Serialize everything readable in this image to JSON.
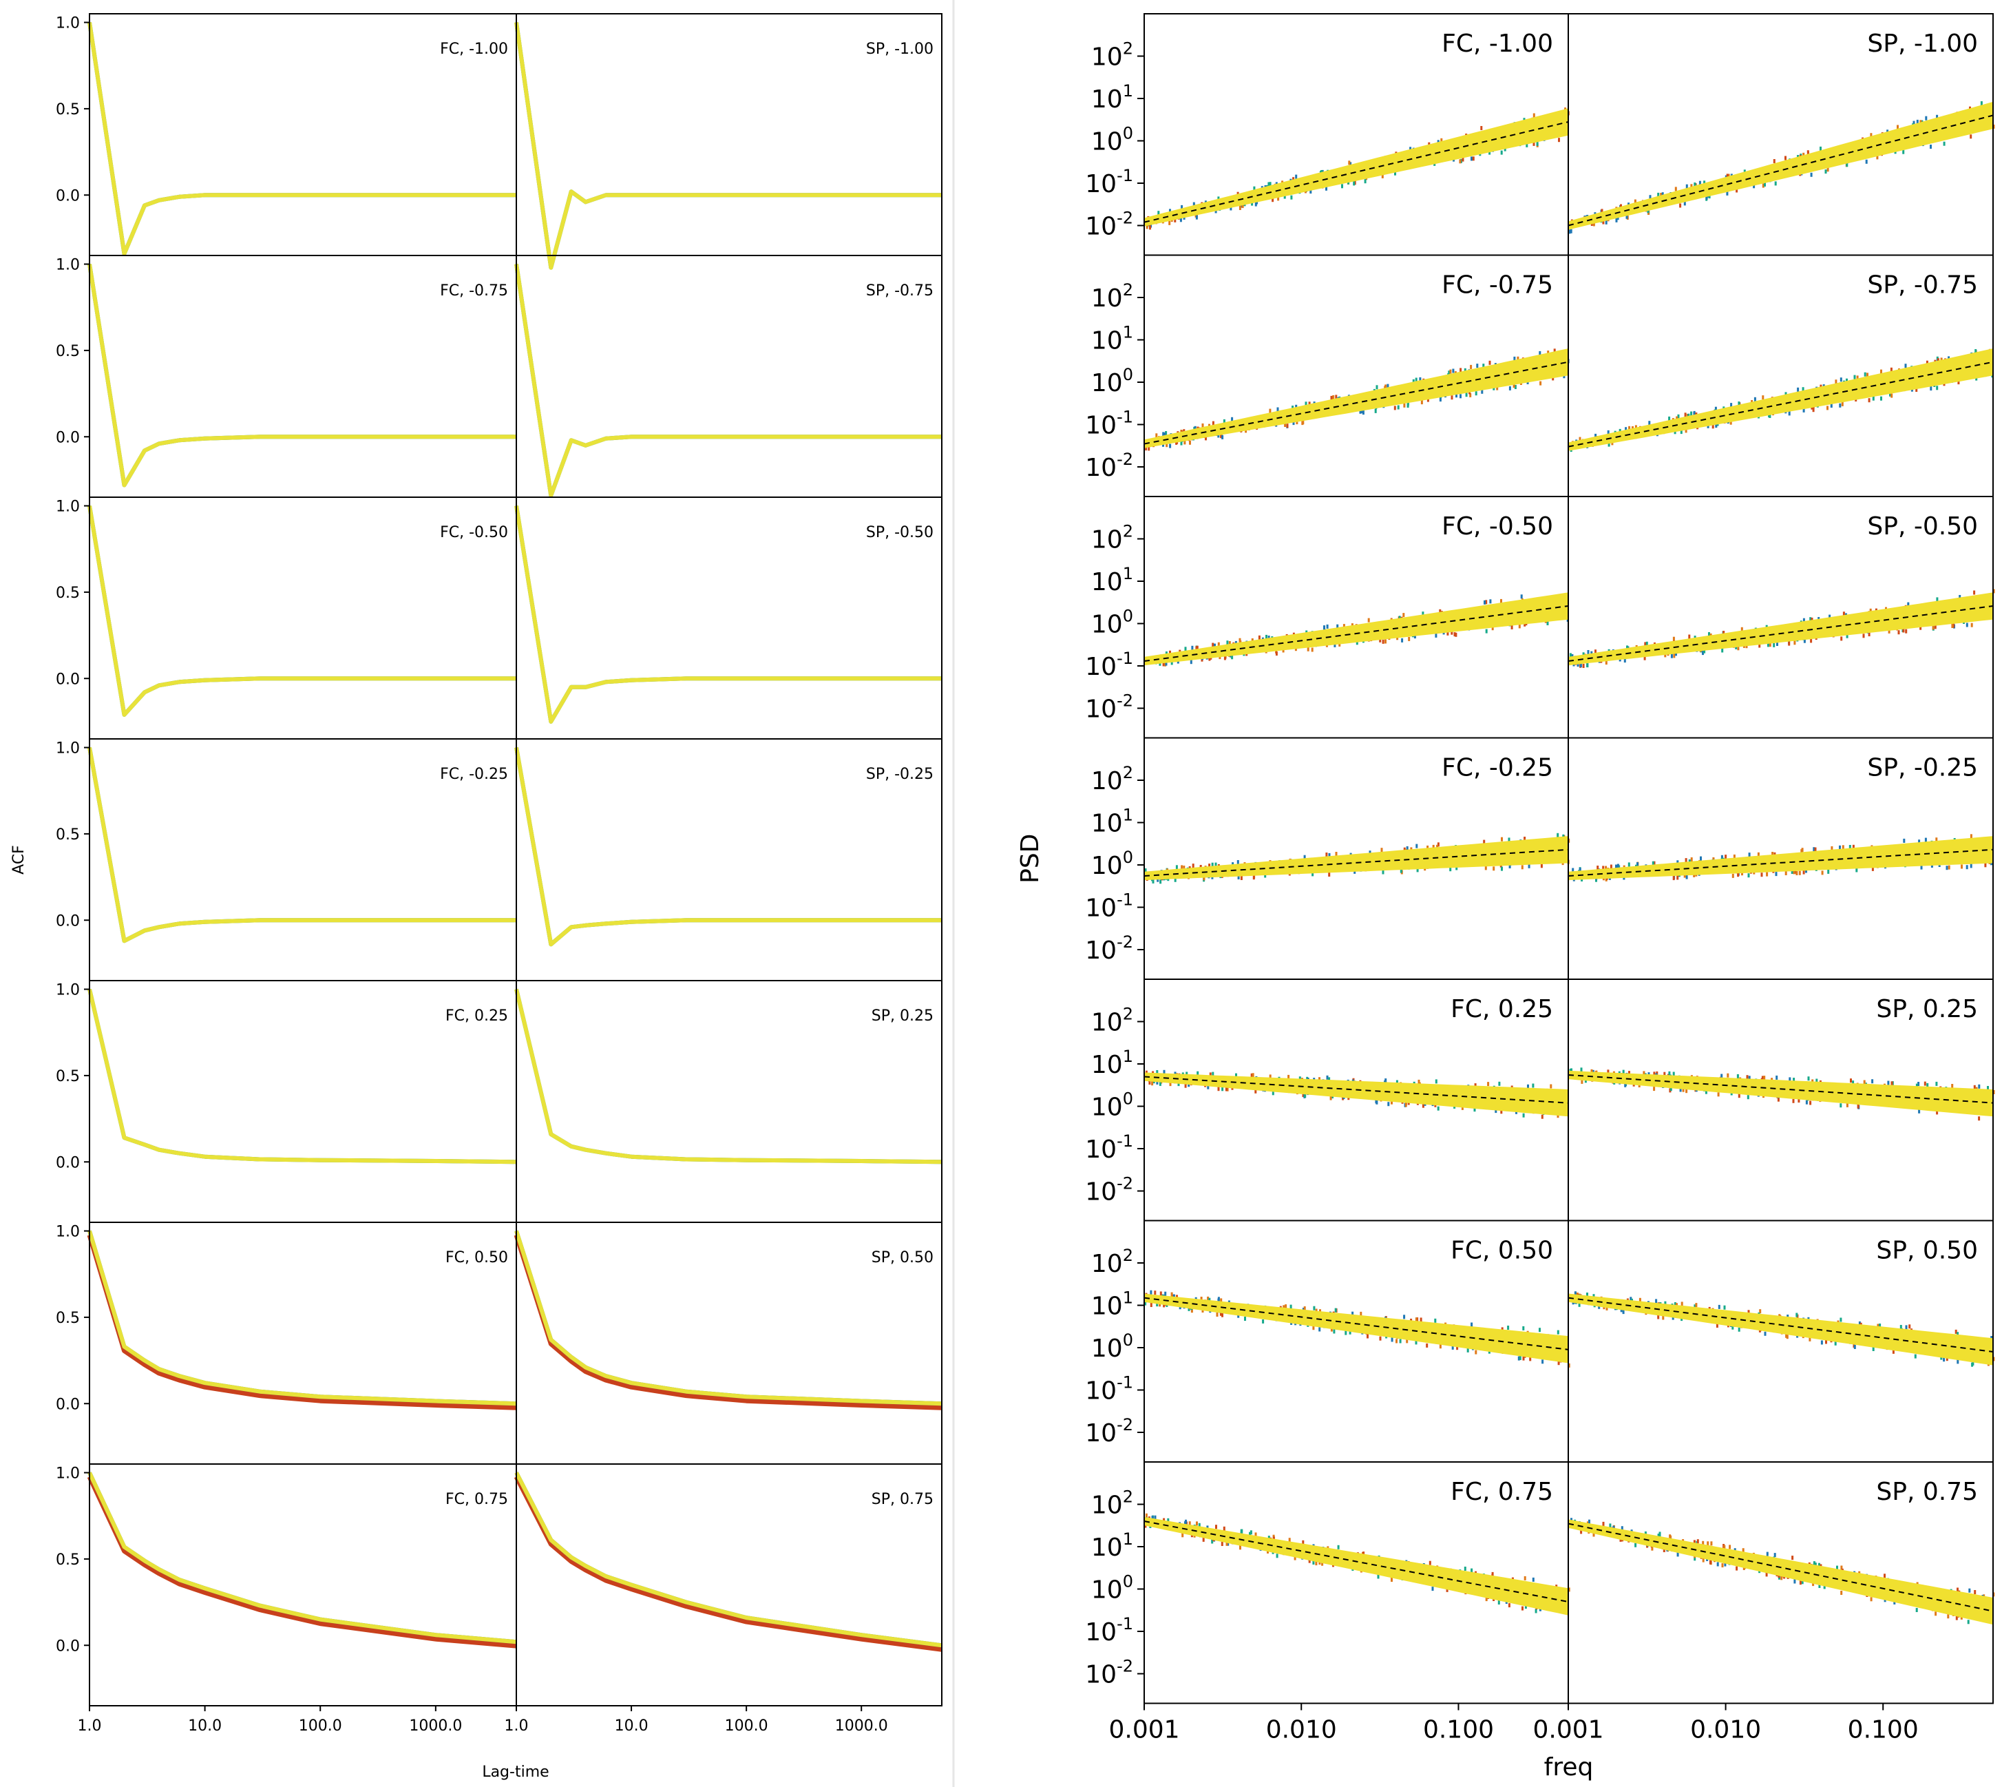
{
  "chart_data": [
    {
      "type": "line",
      "panel": "acf",
      "ylabel": "ACF",
      "xlabel": "Lag-time",
      "x_scale": "log",
      "xlim": [
        1,
        5000
      ],
      "ylim": [
        -0.35,
        1.05
      ],
      "y_ticks": [
        "1.0",
        "0.5",
        "0.0"
      ],
      "y_tick_values": [
        1.0,
        0.5,
        0.0
      ],
      "x_ticks": [
        "1.0",
        "10.0",
        "100.0",
        "1000.0"
      ],
      "x_tick_values": [
        1,
        10,
        100,
        1000
      ],
      "columns": [
        "FC",
        "SP"
      ],
      "rows": [
        {
          "param": "-1.00",
          "FC": {
            "label": "FC, -1.00",
            "x": [
              1,
              2,
              3,
              4,
              6,
              10,
              30,
              100,
              1000,
              5000
            ],
            "y": [
              1.0,
              -0.34,
              -0.06,
              -0.03,
              -0.01,
              0.0,
              0.0,
              0.0,
              0.0,
              0.0
            ]
          },
          "SP": {
            "label": "SP, -1.00",
            "x": [
              1,
              2,
              3,
              4,
              6,
              10,
              30,
              100,
              1000,
              5000
            ],
            "y": [
              1.0,
              -0.42,
              0.02,
              -0.04,
              0.0,
              0.0,
              0.0,
              0.0,
              0.0,
              0.0
            ]
          }
        },
        {
          "param": "-0.75",
          "FC": {
            "label": "FC, -0.75",
            "x": [
              1,
              2,
              3,
              4,
              6,
              10,
              30,
              100,
              1000,
              5000
            ],
            "y": [
              1.0,
              -0.28,
              -0.08,
              -0.04,
              -0.02,
              -0.01,
              0.0,
              0.0,
              0.0,
              0.0
            ]
          },
          "SP": {
            "label": "SP, -0.75",
            "x": [
              1,
              2,
              3,
              4,
              6,
              10,
              30,
              100,
              1000,
              5000
            ],
            "y": [
              1.0,
              -0.34,
              -0.02,
              -0.05,
              -0.01,
              0.0,
              0.0,
              0.0,
              0.0,
              0.0
            ]
          }
        },
        {
          "param": "-0.50",
          "FC": {
            "label": "FC, -0.50",
            "x": [
              1,
              2,
              3,
              4,
              6,
              10,
              30,
              100,
              1000,
              5000
            ],
            "y": [
              1.0,
              -0.21,
              -0.08,
              -0.04,
              -0.02,
              -0.01,
              0.0,
              0.0,
              0.0,
              0.0
            ]
          },
          "SP": {
            "label": "SP, -0.50",
            "x": [
              1,
              2,
              3,
              4,
              6,
              10,
              30,
              100,
              1000,
              5000
            ],
            "y": [
              1.0,
              -0.25,
              -0.05,
              -0.05,
              -0.02,
              -0.01,
              0.0,
              0.0,
              0.0,
              0.0
            ]
          }
        },
        {
          "param": "-0.25",
          "FC": {
            "label": "FC, -0.25",
            "x": [
              1,
              2,
              3,
              4,
              6,
              10,
              30,
              100,
              1000,
              5000
            ],
            "y": [
              1.0,
              -0.12,
              -0.06,
              -0.04,
              -0.02,
              -0.01,
              0.0,
              0.0,
              0.0,
              0.0
            ]
          },
          "SP": {
            "label": "SP, -0.25",
            "x": [
              1,
              2,
              3,
              4,
              6,
              10,
              30,
              100,
              1000,
              5000
            ],
            "y": [
              1.0,
              -0.14,
              -0.04,
              -0.03,
              -0.02,
              -0.01,
              0.0,
              0.0,
              0.0,
              0.0
            ]
          }
        },
        {
          "param": "0.25",
          "FC": {
            "label": "FC, 0.25",
            "x": [
              1,
              2,
              3,
              4,
              6,
              10,
              30,
              100,
              1000,
              5000
            ],
            "y": [
              1.0,
              0.14,
              0.1,
              0.07,
              0.05,
              0.03,
              0.015,
              0.01,
              0.005,
              0.0
            ]
          },
          "SP": {
            "label": "SP, 0.25",
            "x": [
              1,
              2,
              3,
              4,
              6,
              10,
              30,
              100,
              1000,
              5000
            ],
            "y": [
              1.0,
              0.16,
              0.09,
              0.07,
              0.05,
              0.03,
              0.015,
              0.01,
              0.005,
              0.0
            ]
          }
        },
        {
          "param": "0.50",
          "FC": {
            "label": "FC, 0.50",
            "x": [
              1,
              2,
              3,
              4,
              6,
              10,
              30,
              100,
              1000,
              5000
            ],
            "y": [
              1.0,
              0.33,
              0.25,
              0.2,
              0.16,
              0.12,
              0.07,
              0.04,
              0.015,
              0.0
            ]
          },
          "SP": {
            "label": "SP, 0.50",
            "x": [
              1,
              2,
              3,
              4,
              6,
              10,
              30,
              100,
              1000,
              5000
            ],
            "y": [
              1.0,
              0.37,
              0.27,
              0.21,
              0.16,
              0.12,
              0.07,
              0.04,
              0.015,
              0.0
            ]
          }
        },
        {
          "param": "0.75",
          "FC": {
            "label": "FC, 0.75",
            "x": [
              1,
              2,
              3,
              4,
              6,
              10,
              30,
              100,
              1000,
              5000
            ],
            "y": [
              1.0,
              0.57,
              0.49,
              0.44,
              0.38,
              0.33,
              0.23,
              0.15,
              0.06,
              0.02
            ]
          },
          "SP": {
            "label": "SP, 0.75",
            "x": [
              1,
              2,
              3,
              4,
              6,
              10,
              30,
              100,
              1000,
              5000
            ],
            "y": [
              1.0,
              0.61,
              0.51,
              0.46,
              0.4,
              0.35,
              0.25,
              0.16,
              0.06,
              0.0
            ]
          }
        }
      ]
    },
    {
      "type": "scatter",
      "panel": "psd",
      "ylabel": "PSD",
      "xlabel": "freq",
      "x_scale": "log",
      "y_scale": "log",
      "xlim": [
        0.001,
        0.5
      ],
      "ylim": [
        0.002,
        1000
      ],
      "y_ticks": [
        {
          "base": "10",
          "exp": "2"
        },
        {
          "base": "10",
          "exp": "1"
        },
        {
          "base": "10",
          "exp": "0"
        },
        {
          "base": "10",
          "exp": "-1"
        },
        {
          "base": "10",
          "exp": "-2"
        }
      ],
      "y_tick_values": [
        100,
        10,
        1,
        0.1,
        0.01
      ],
      "x_ticks": [
        "0.001",
        "0.010",
        "0.100"
      ],
      "x_tick_values": [
        0.001,
        0.01,
        0.1
      ],
      "columns": [
        "FC",
        "SP"
      ],
      "rows": [
        {
          "param": "-1.00",
          "FC": {
            "label": "FC, -1.00",
            "psd_at_xmin": 0.012,
            "psd_at_xmax": 2.8
          },
          "SP": {
            "label": "SP, -1.00",
            "psd_at_xmin": 0.01,
            "psd_at_xmax": 4.0
          }
        },
        {
          "param": "-0.75",
          "FC": {
            "label": "FC, -0.75",
            "psd_at_xmin": 0.035,
            "psd_at_xmax": 3.0
          },
          "SP": {
            "label": "SP, -0.75",
            "psd_at_xmin": 0.03,
            "psd_at_xmax": 3.0
          }
        },
        {
          "param": "-0.50",
          "FC": {
            "label": "FC, -0.50",
            "psd_at_xmin": 0.13,
            "psd_at_xmax": 2.6
          },
          "SP": {
            "label": "SP, -0.50",
            "psd_at_xmin": 0.13,
            "psd_at_xmax": 2.6
          }
        },
        {
          "param": "-0.25",
          "FC": {
            "label": "FC, -0.25",
            "psd_at_xmin": 0.55,
            "psd_at_xmax": 2.3
          },
          "SP": {
            "label": "SP, -0.25",
            "psd_at_xmin": 0.55,
            "psd_at_xmax": 2.3
          }
        },
        {
          "param": "0.25",
          "FC": {
            "label": "FC, 0.25",
            "psd_at_xmin": 5.0,
            "psd_at_xmax": 1.2
          },
          "SP": {
            "label": "SP, 0.25",
            "psd_at_xmin": 5.5,
            "psd_at_xmax": 1.2
          }
        },
        {
          "param": "0.50",
          "FC": {
            "label": "FC, 0.50",
            "psd_at_xmin": 15.0,
            "psd_at_xmax": 0.9
          },
          "SP": {
            "label": "SP, 0.50",
            "psd_at_xmin": 15.0,
            "psd_at_xmax": 0.8
          }
        },
        {
          "param": "0.75",
          "FC": {
            "label": "FC, 0.75",
            "psd_at_xmin": 40.0,
            "psd_at_xmax": 0.5
          },
          "SP": {
            "label": "SP, 0.75",
            "psd_at_xmin": 35.0,
            "psd_at_xmax": 0.3
          }
        }
      ]
    }
  ],
  "colors": {
    "acf_line": "#e8e23a",
    "acf_under_red": "#c8401c",
    "acf_under_teal": "#1f8f8f",
    "psd_band": "#f0e030",
    "psd_scatter": [
      "#1f77b4",
      "#d14a18",
      "#17a98a",
      "#e07a1a"
    ],
    "fit_line": "#000000",
    "separator": "#e6e6e6"
  }
}
